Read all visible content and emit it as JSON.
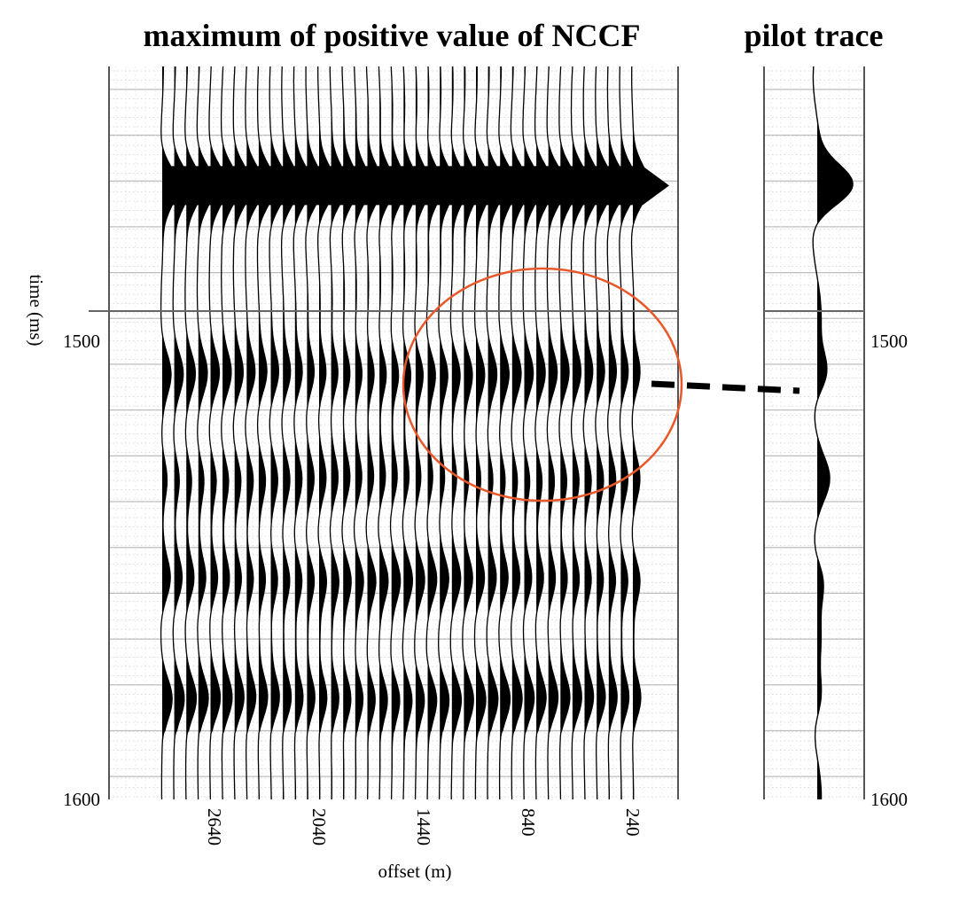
{
  "chart_data": [
    {
      "type": "line",
      "panel": "gather",
      "title": "maximum of positive value of NCCF",
      "xlabel": "offset (m)",
      "ylabel": "time (ms)",
      "x_ticks": [
        2640,
        2040,
        1440,
        840,
        240
      ],
      "y_ticks": [
        1500,
        1600
      ],
      "ylim": [
        1440,
        1600
      ],
      "xlim": [
        3000,
        0
      ],
      "y_reversed": true,
      "grid": true,
      "trace_count": 40,
      "trace_offset_first": 2940,
      "trace_offset_last": 240,
      "events_ms": [
        {
          "time": 1466,
          "amplitude": 1.6,
          "extends_to_zero_offset": true
        },
        {
          "time": 1507,
          "amplitude": 0.8
        },
        {
          "time": 1530,
          "amplitude": 0.6
        },
        {
          "time": 1552,
          "amplitude": 0.8
        },
        {
          "time": 1578,
          "amplitude": 0.9
        }
      ],
      "colors": {
        "trace": "#000000",
        "annotation_ellipse": "#e8582a",
        "grid": "#c7c7c7",
        "frame": "#555555"
      }
    },
    {
      "type": "line",
      "panel": "pilot",
      "title": "pilot trace",
      "y_ticks": [
        1500,
        1600
      ],
      "ylim": [
        1440,
        1600
      ],
      "y_reversed": true,
      "grid": true,
      "events_ms": [
        {
          "time": 1466,
          "amplitude": 1.0
        },
        {
          "time": 1507,
          "amplitude": 0.35
        },
        {
          "time": 1530,
          "amplitude": 0.25
        },
        {
          "time": 1552,
          "amplitude": 0.25
        },
        {
          "time": 1578,
          "amplitude": 0.2
        }
      ],
      "marker_time_ms": 1516
    }
  ]
}
